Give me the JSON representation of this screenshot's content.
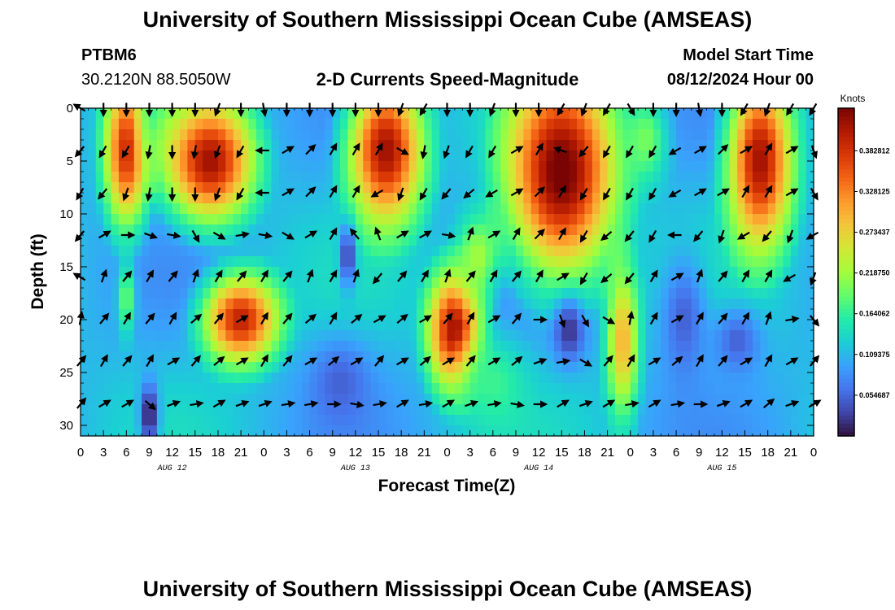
{
  "header": {
    "title_top": "University of Southern Mississippi Ocean Cube (AMSEAS)",
    "title_bottom": "University of Southern Mississippi Ocean Cube (AMSEAS)",
    "station_id": "PTBM6",
    "station_coords": "30.2120N  88.5050W",
    "plot_title": "2-D Currents Speed-Magnitude",
    "model_start_label": "Model Start Time",
    "model_start_value": "08/12/2024 Hour 00"
  },
  "chart_data": {
    "type": "heatmap",
    "title": "2-D Currents Speed-Magnitude",
    "xlabel": "Forecast Time(Z)",
    "ylabel": "Depth (ft)",
    "colorbar_label": "Knots",
    "x_tick_labels": [
      "0",
      "3",
      "6",
      "9",
      "12",
      "15",
      "18",
      "21",
      "0",
      "3",
      "6",
      "9",
      "12",
      "15",
      "18",
      "21",
      "0",
      "3",
      "6",
      "9",
      "12",
      "15",
      "18",
      "21",
      "0",
      "3",
      "6",
      "9",
      "12",
      "15",
      "18",
      "21",
      "0"
    ],
    "x_range_hours": [
      0,
      96
    ],
    "date_labels": [
      {
        "label": "AUG 12",
        "hour": 12
      },
      {
        "label": "AUG 13",
        "hour": 36
      },
      {
        "label": "AUG 14",
        "hour": 60
      },
      {
        "label": "AUG 15",
        "hour": 84
      }
    ],
    "y_ticks": [
      0,
      5,
      10,
      15,
      20,
      25,
      30
    ],
    "ylim": [
      0,
      31
    ],
    "y_inverted": true,
    "colorbar_range": [
      0.0,
      0.44
    ],
    "colorbar_ticks": [
      "0.054687",
      "0.109375",
      "0.164062",
      "0.218750",
      "0.273437",
      "0.328125",
      "0.382812"
    ],
    "colorbar_tick_values": [
      0.054687,
      0.109375,
      0.164062,
      0.21875,
      0.273437,
      0.328125,
      0.382812
    ],
    "colormap_stops": [
      "#30123b",
      "#4145ab",
      "#4675ed",
      "#39a2fc",
      "#1bcfd4",
      "#24eca6",
      "#61fc6c",
      "#a4fc3b",
      "#d1e834",
      "#f3c63a",
      "#fe9b2d",
      "#f36315",
      "#d93806",
      "#b11901",
      "#7a0403"
    ],
    "speed_features": [
      {
        "hour": 6,
        "depth": 4.0,
        "speed": 0.39,
        "hw": 2.0,
        "dw": 5.0
      },
      {
        "hour": 6,
        "depth": 18.0,
        "speed": 0.2,
        "hw": 0.8,
        "dw": 2.5
      },
      {
        "hour": 11,
        "depth": 2.0,
        "speed": 0.16,
        "hw": 2.0,
        "dw": 3.0
      },
      {
        "hour": 17,
        "depth": 5.0,
        "speed": 0.42,
        "hw": 4.0,
        "dw": 4.0
      },
      {
        "hour": 21,
        "depth": 20.0,
        "speed": 0.4,
        "hw": 3.5,
        "dw": 3.0
      },
      {
        "hour": 40,
        "depth": 4.0,
        "speed": 0.42,
        "hw": 3.5,
        "dw": 5.0
      },
      {
        "hour": 49,
        "depth": 21.0,
        "speed": 0.42,
        "hw": 2.5,
        "dw": 4.0
      },
      {
        "hour": 52,
        "depth": 14.0,
        "speed": 0.22,
        "hw": 2.0,
        "dw": 3.0
      },
      {
        "hour": 63,
        "depth": 6.0,
        "speed": 0.45,
        "hw": 5.0,
        "dw": 7.0
      },
      {
        "hour": 71,
        "depth": 22.0,
        "speed": 0.3,
        "hw": 1.5,
        "dw": 5.0
      },
      {
        "hour": 74,
        "depth": 3.0,
        "speed": 0.2,
        "hw": 2.0,
        "dw": 3.0
      },
      {
        "hour": 89,
        "depth": 5.0,
        "speed": 0.42,
        "hw": 3.0,
        "dw": 6.0
      },
      {
        "hour": 54,
        "depth": 26.0,
        "speed": 0.17,
        "hw": 3.0,
        "dw": 3.0
      }
    ],
    "slow_features": [
      {
        "hour": 9,
        "depth": 29.0,
        "speed": 0.0,
        "hw": 1.2,
        "dw": 3.0
      },
      {
        "hour": 35,
        "depth": 14.0,
        "speed": 0.02,
        "hw": 1.0,
        "dw": 3.0
      },
      {
        "hour": 64,
        "depth": 21.0,
        "speed": 0.02,
        "hw": 2.0,
        "dw": 3.0
      },
      {
        "hour": 86,
        "depth": 22.0,
        "speed": 0.05,
        "hw": 3.0,
        "dw": 3.0
      },
      {
        "hour": 34,
        "depth": 26.0,
        "speed": 0.05,
        "hw": 4.0,
        "dw": 4.0
      },
      {
        "hour": 79,
        "depth": 20.0,
        "speed": 0.05,
        "hw": 3.0,
        "dw": 6.0
      }
    ],
    "background_speed": 0.11,
    "vector_rows_depth_ft": [
      0,
      4,
      8,
      12,
      16,
      20,
      24,
      28
    ],
    "vector_col_hours": [
      0,
      3,
      6,
      9,
      12,
      15,
      18,
      21,
      24,
      27,
      30,
      33,
      36,
      39,
      42,
      45,
      48,
      51,
      54,
      57,
      60,
      63,
      66,
      69,
      72,
      75,
      78,
      81,
      84,
      87,
      90,
      93,
      96
    ],
    "vector_directions_deg": [
      [
        300,
        180,
        180,
        180,
        180,
        180,
        200,
        180,
        170,
        180,
        180,
        180,
        180,
        180,
        200,
        210,
        180,
        180,
        200,
        180,
        180,
        210,
        200,
        210,
        150,
        180,
        180,
        170,
        180,
        210,
        200,
        210,
        210
      ],
      [
        220,
        210,
        210,
        190,
        180,
        190,
        200,
        210,
        270,
        60,
        45,
        30,
        30,
        30,
        120,
        190,
        200,
        210,
        210,
        60,
        30,
        290,
        220,
        210,
        210,
        210,
        240,
        60,
        45,
        60,
        30,
        60,
        160
      ],
      [
        210,
        220,
        200,
        190,
        180,
        180,
        200,
        210,
        270,
        60,
        45,
        30,
        30,
        240,
        200,
        210,
        220,
        230,
        240,
        60,
        45,
        30,
        210,
        210,
        210,
        210,
        240,
        60,
        60,
        30,
        30,
        60,
        150
      ],
      [
        220,
        60,
        90,
        110,
        100,
        150,
        120,
        80,
        100,
        120,
        60,
        30,
        320,
        340,
        60,
        60,
        100,
        20,
        60,
        30,
        45,
        30,
        210,
        230,
        220,
        210,
        270,
        220,
        200,
        240,
        220,
        200,
        240
      ],
      [
        300,
        20,
        40,
        30,
        40,
        20,
        30,
        40,
        30,
        40,
        20,
        30,
        20,
        220,
        40,
        30,
        20,
        40,
        30,
        40,
        30,
        60,
        210,
        230,
        220,
        30,
        60,
        20,
        40,
        30,
        30,
        240,
        200
      ],
      [
        10,
        40,
        30,
        40,
        30,
        50,
        40,
        60,
        30,
        40,
        50,
        30,
        50,
        60,
        50,
        60,
        40,
        30,
        60,
        40,
        90,
        160,
        150,
        120,
        10,
        30,
        60,
        30,
        40,
        30,
        20,
        80,
        140
      ],
      [
        40,
        30,
        40,
        30,
        60,
        40,
        50,
        60,
        30,
        40,
        60,
        50,
        60,
        40,
        60,
        50,
        60,
        40,
        60,
        50,
        70,
        80,
        120,
        40,
        30,
        60,
        50,
        30,
        40,
        60,
        30,
        60,
        40
      ],
      [
        40,
        60,
        60,
        130,
        70,
        80,
        60,
        70,
        70,
        80,
        80,
        90,
        100,
        80,
        60,
        80,
        60,
        70,
        80,
        100,
        90,
        60,
        70,
        60,
        80,
        60,
        80,
        90,
        70,
        60,
        50,
        70,
        60
      ]
    ]
  }
}
